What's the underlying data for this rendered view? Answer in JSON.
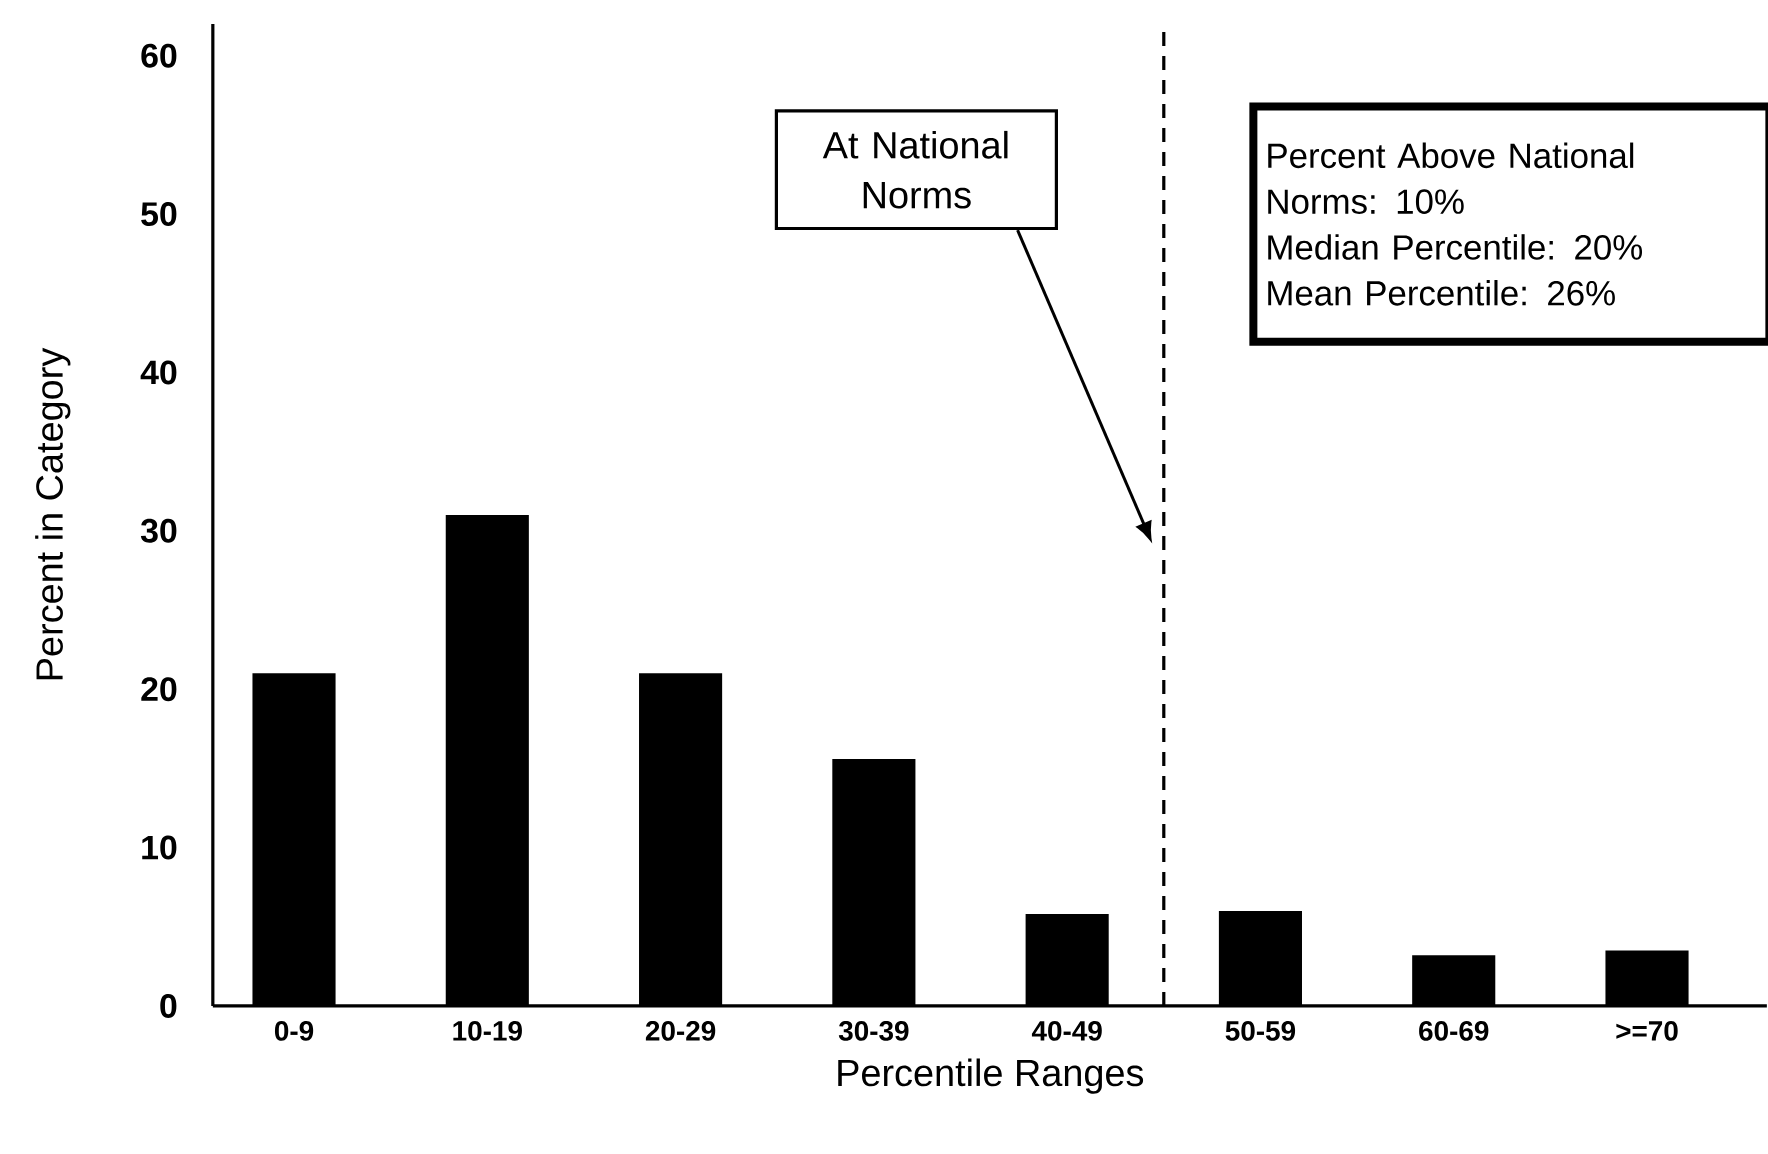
{
  "chart_data": {
    "type": "bar",
    "xlabel": "Percentile Ranges",
    "ylabel": "Percent in Category",
    "categories": [
      "0-9",
      "10-19",
      "20-29",
      "30-39",
      "40-49",
      "50-59",
      "60-69",
      ">=70"
    ],
    "values": [
      21,
      31,
      21,
      15.6,
      5.8,
      6,
      3.2,
      3.5
    ],
    "color": "#000000",
    "ylim": [
      0,
      62
    ],
    "yticks": [
      0,
      10,
      20,
      30,
      40,
      50,
      60
    ],
    "grid": false,
    "annotations": [
      "At National Norms",
      "Percent Above National Norms: 10%",
      "Median Percentile: 20%",
      "Mean Percentile: 26%"
    ]
  }
}
